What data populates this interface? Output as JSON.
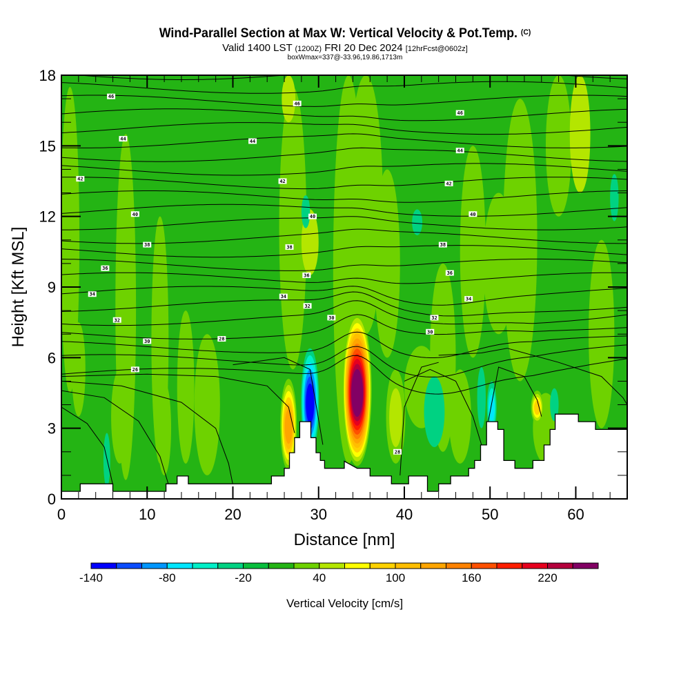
{
  "header": {
    "title": "Wind-Parallel Section at Max W: Vertical Velocity & Pot.Temp.",
    "copyright": "(C)",
    "valid_prefix": "Valid 1400 LST",
    "valid_utc": "(1200Z)",
    "valid_date": "FRI 20 Dec 2024",
    "forecast": "[12hrFcst@0602z]",
    "box_info": "boxWmax=337@-33.96,19.86,1713m"
  },
  "chart_data": {
    "type": "heatmap",
    "title": "Wind-Parallel Section at Max W: Vertical Velocity & Pot.Temp.",
    "xlabel": "Distance [nm]",
    "ylabel": "Height [Kft MSL]",
    "xlim": [
      0,
      66
    ],
    "ylim": [
      0,
      18
    ],
    "xticks": [
      0,
      10,
      20,
      30,
      40,
      50,
      60
    ],
    "yticks": [
      0,
      3,
      6,
      9,
      12,
      15,
      18
    ],
    "grid": false,
    "colorbar": {
      "label": "Vertical Velocity [cm/s]",
      "placement": "bottom",
      "levels": [
        -140,
        -120,
        -100,
        -80,
        -60,
        -40,
        -20,
        0,
        20,
        40,
        60,
        80,
        100,
        120,
        140,
        160,
        180,
        200,
        220,
        240,
        260
      ],
      "tick_labels": [
        "-140",
        "-80",
        "-20",
        "40",
        "100",
        "160",
        "220"
      ],
      "colors": [
        "#0000ff",
        "#0a4cff",
        "#0096ff",
        "#00e6ff",
        "#00f0c8",
        "#00d282",
        "#08be3c",
        "#24b414",
        "#6ed200",
        "#b4e600",
        "#ffff00",
        "#ffd200",
        "#ffbe00",
        "#ffa500",
        "#ff8200",
        "#ff5000",
        "#ff1e00",
        "#e6001e",
        "#b4003c",
        "#820064"
      ]
    },
    "background_value_cm_s": "0 to 20",
    "w_features": [
      {
        "name": "main updraft",
        "x_nm": 34.5,
        "base_kft": 1.4,
        "top_kft": 7.9,
        "peak_cm_s": 260
      },
      {
        "name": "west updraft",
        "x_nm": 26.5,
        "base_kft": 1.2,
        "top_kft": 5.1,
        "peak_cm_s": 120
      },
      {
        "name": "lee downdraft",
        "x_nm": 29.0,
        "base_kft": 1.9,
        "top_kft": 6.4,
        "min_cm_s": -140
      },
      {
        "name": "east downdraft",
        "x_nm": 50.2,
        "base_kft": 2.8,
        "top_kft": 5.0,
        "min_cm_s": -80
      },
      {
        "name": "east updraft",
        "x_nm": 55.5,
        "base_kft": 3.2,
        "top_kft": 4.6,
        "peak_cm_s": 80
      },
      {
        "name": "broad weak ascent",
        "x_nm": 39.0,
        "base_kft": 1.5,
        "top_kft": 5.5,
        "peak_cm_s": 40
      }
    ],
    "theta_contours": {
      "units": "degC potential temperature",
      "interval": 1,
      "labels": [
        {
          "value": "46",
          "x_nm": 5.8,
          "y_kft": 17.1
        },
        {
          "value": "46",
          "x_nm": 27.5,
          "y_kft": 16.8
        },
        {
          "value": "46",
          "x_nm": 46.5,
          "y_kft": 16.4
        },
        {
          "value": "44",
          "x_nm": 7.2,
          "y_kft": 15.3
        },
        {
          "value": "44",
          "x_nm": 22.3,
          "y_kft": 15.2
        },
        {
          "value": "44",
          "x_nm": 46.5,
          "y_kft": 14.8
        },
        {
          "value": "42",
          "x_nm": 2.2,
          "y_kft": 13.6
        },
        {
          "value": "42",
          "x_nm": 25.8,
          "y_kft": 13.5
        },
        {
          "value": "42",
          "x_nm": 45.2,
          "y_kft": 13.4
        },
        {
          "value": "40",
          "x_nm": 8.6,
          "y_kft": 12.1
        },
        {
          "value": "40",
          "x_nm": 29.3,
          "y_kft": 12.0
        },
        {
          "value": "40",
          "x_nm": 48.0,
          "y_kft": 12.1
        },
        {
          "value": "38",
          "x_nm": 10.0,
          "y_kft": 10.8
        },
        {
          "value": "38",
          "x_nm": 26.6,
          "y_kft": 10.7
        },
        {
          "value": "38",
          "x_nm": 44.5,
          "y_kft": 10.8
        },
        {
          "value": "36",
          "x_nm": 5.1,
          "y_kft": 9.8
        },
        {
          "value": "36",
          "x_nm": 28.6,
          "y_kft": 9.5
        },
        {
          "value": "36",
          "x_nm": 45.3,
          "y_kft": 9.6
        },
        {
          "value": "34",
          "x_nm": 3.6,
          "y_kft": 8.7
        },
        {
          "value": "34",
          "x_nm": 25.9,
          "y_kft": 8.6
        },
        {
          "value": "34",
          "x_nm": 47.5,
          "y_kft": 8.5
        },
        {
          "value": "32",
          "x_nm": 6.5,
          "y_kft": 7.6
        },
        {
          "value": "32",
          "x_nm": 28.7,
          "y_kft": 8.2
        },
        {
          "value": "32",
          "x_nm": 43.5,
          "y_kft": 7.7
        },
        {
          "value": "30",
          "x_nm": 10.0,
          "y_kft": 6.7
        },
        {
          "value": "30",
          "x_nm": 31.5,
          "y_kft": 7.7
        },
        {
          "value": "30",
          "x_nm": 43.0,
          "y_kft": 7.1
        },
        {
          "value": "28",
          "x_nm": 18.7,
          "y_kft": 6.8
        },
        {
          "value": "28",
          "x_nm": 39.2,
          "y_kft": 2.0
        },
        {
          "value": "26",
          "x_nm": 8.6,
          "y_kft": 5.5
        }
      ]
    },
    "terrain_profile": {
      "x_nm": [
        0,
        2.2,
        2.2,
        6,
        6,
        12.2,
        12.2,
        13.5,
        13.5,
        14.8,
        14.8,
        16.2,
        16.2,
        24.5,
        24.5,
        26,
        26,
        26.6,
        26.6,
        27.2,
        27.2,
        27.8,
        27.8,
        29.1,
        29.1,
        29.7,
        29.7,
        30.2,
        30.2,
        30.7,
        30.7,
        33,
        33,
        34.5,
        36,
        36,
        38.5,
        38.5,
        40.5,
        40.5,
        42.7,
        42.7,
        44,
        44,
        45.4,
        45.4,
        47.5,
        47.5,
        48.2,
        48.2,
        48.9,
        48.9,
        49.6,
        49.6,
        50.9,
        50.9,
        51.6,
        51.6,
        52.9,
        52.9,
        55,
        55,
        56.3,
        56.3,
        57,
        57,
        57.6,
        57.6,
        60.3,
        60.3,
        62.3,
        62.3,
        66
      ],
      "z_kft": [
        0.32,
        0.32,
        0.64,
        0.64,
        0.32,
        0.32,
        0.64,
        0.64,
        0.97,
        0.97,
        0.64,
        0.64,
        0.64,
        0.64,
        0.97,
        0.97,
        1.3,
        1.3,
        1.96,
        1.96,
        2.6,
        2.6,
        3.28,
        3.28,
        2.6,
        2.6,
        1.96,
        1.96,
        1.63,
        1.63,
        1.3,
        1.3,
        1.6,
        1.3,
        1.3,
        0.97,
        0.97,
        0.64,
        0.64,
        0.97,
        0.97,
        0.32,
        0.32,
        0.64,
        0.64,
        0.97,
        0.97,
        1.3,
        1.3,
        1.63,
        1.63,
        2.29,
        2.29,
        3.28,
        3.28,
        2.95,
        2.95,
        1.63,
        1.63,
        1.3,
        1.3,
        1.63,
        1.63,
        2.29,
        2.29,
        2.95,
        2.95,
        3.6,
        3.6,
        3.28,
        3.28,
        2.95,
        2.95
      ]
    }
  }
}
